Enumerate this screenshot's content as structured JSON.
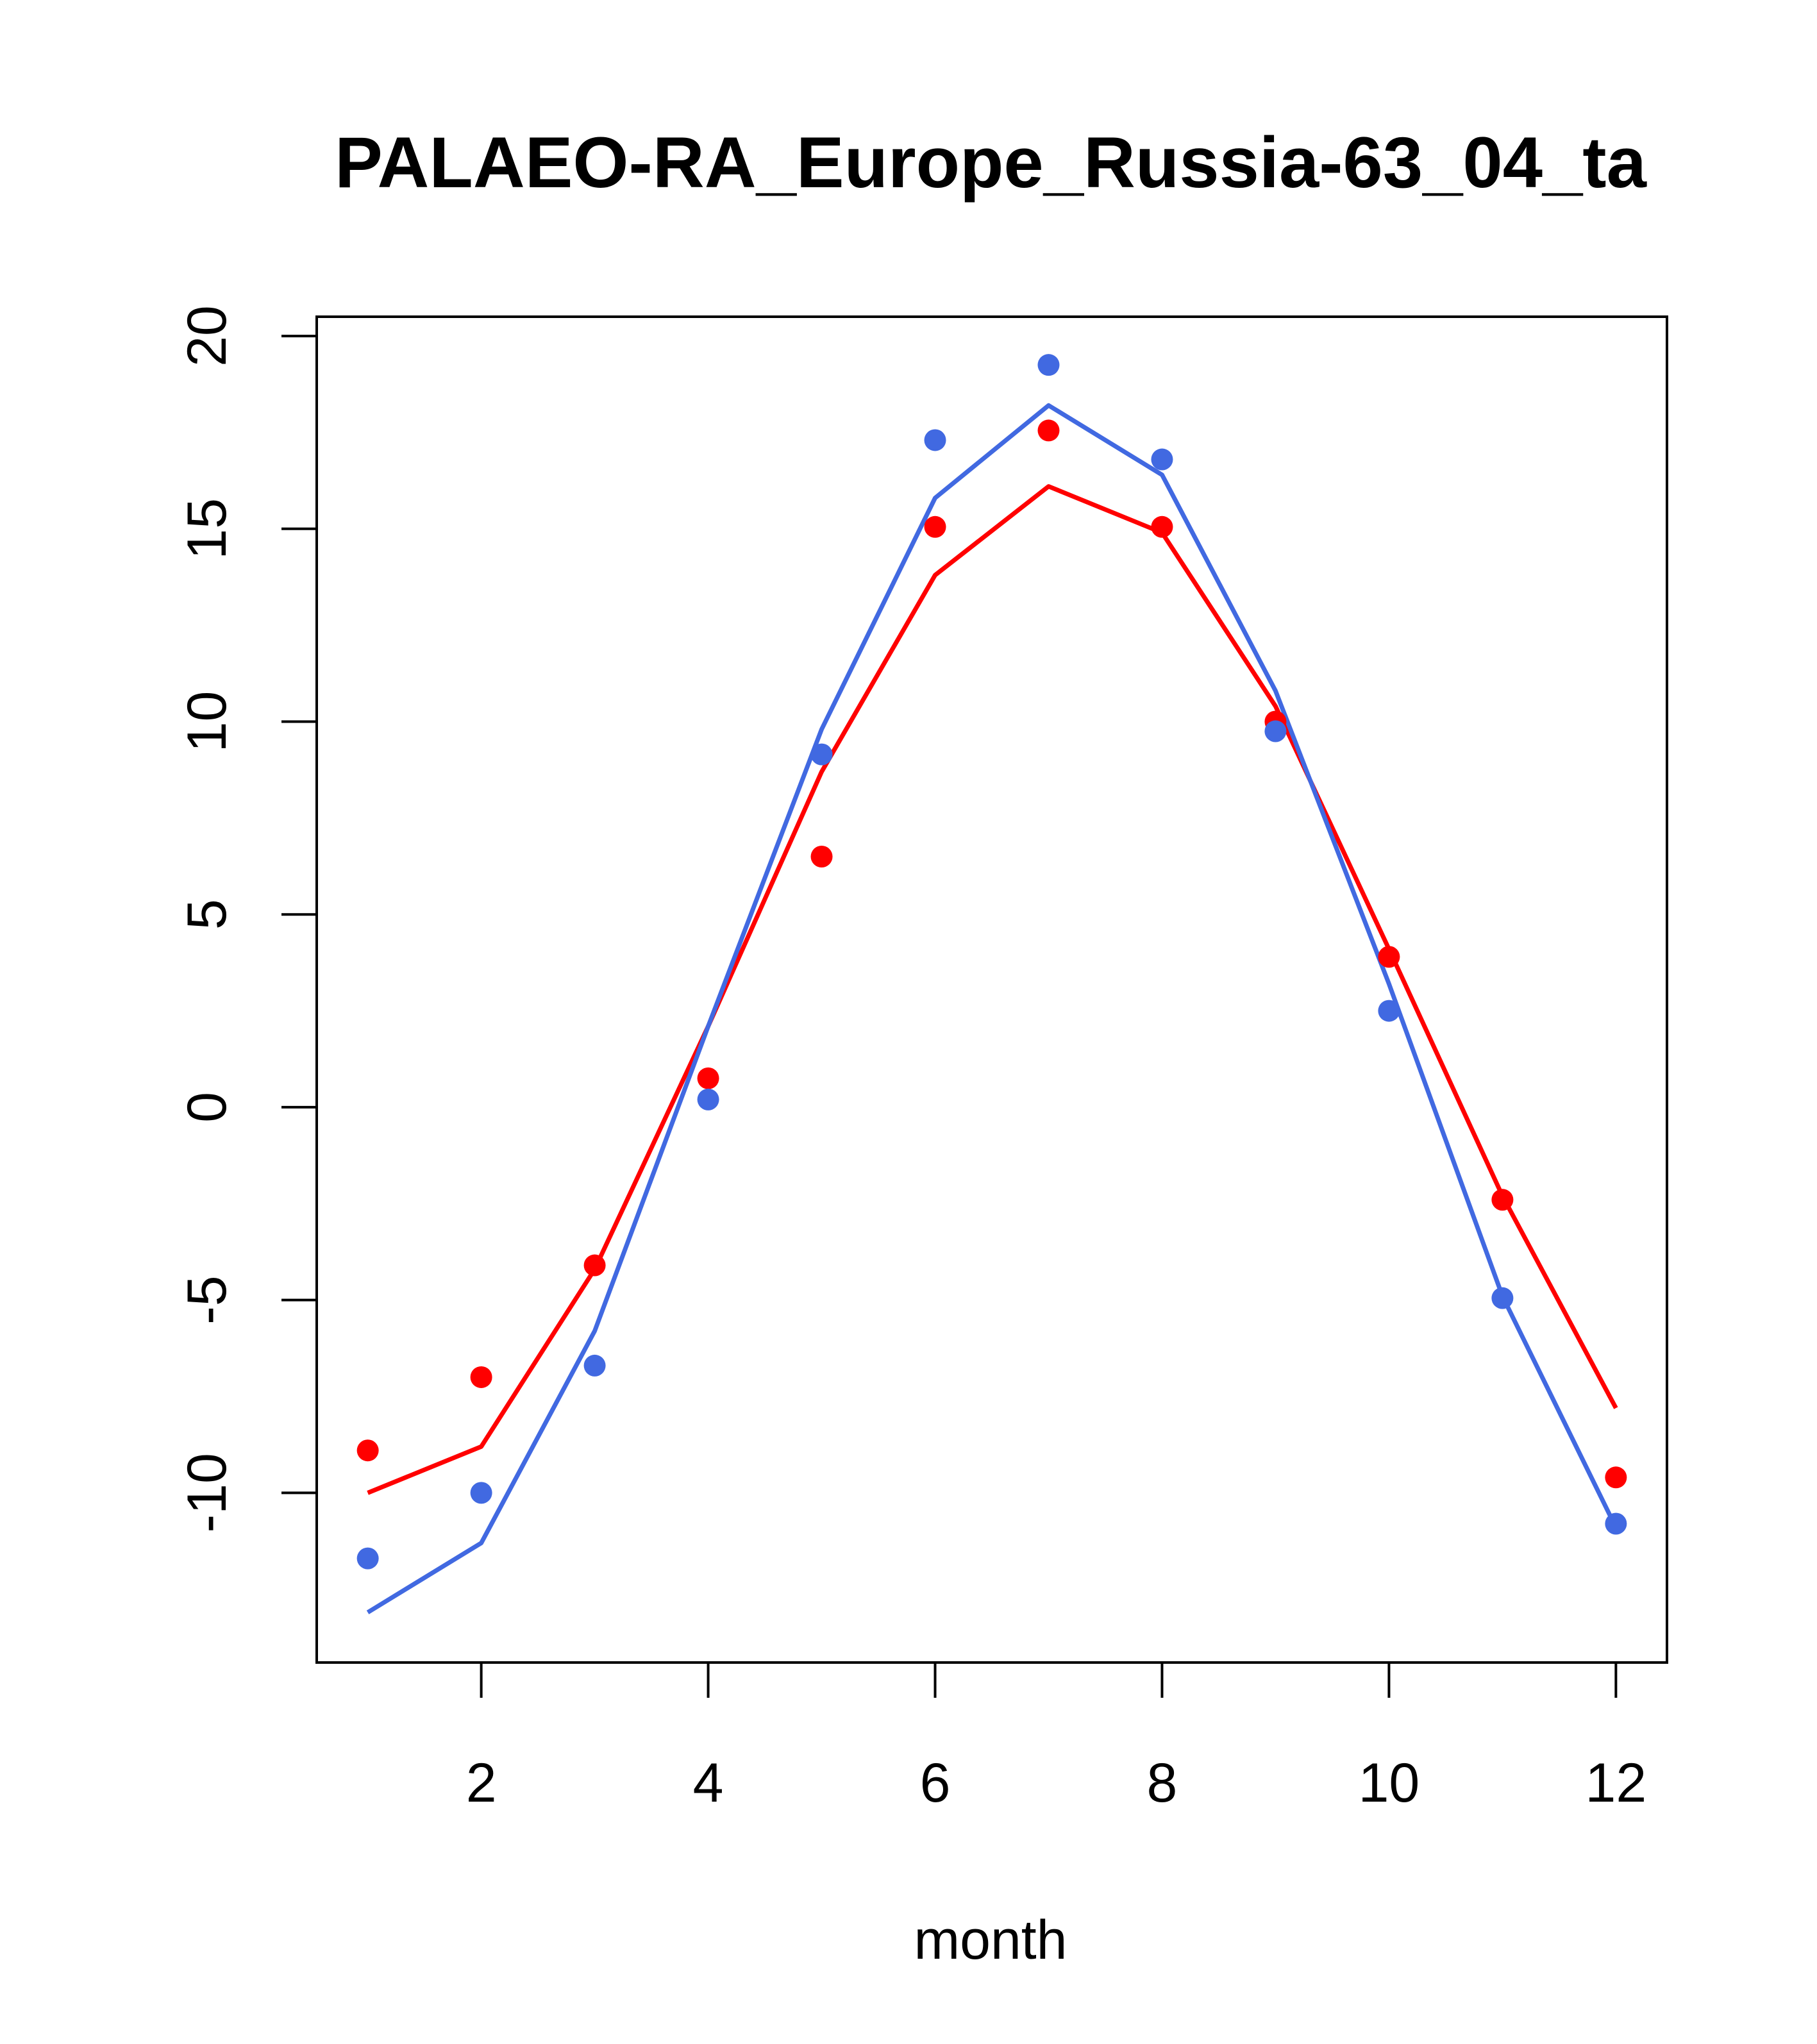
{
  "chart_data": {
    "type": "line",
    "title": "PALAEO-RA_Europe_Russia-63_04_ta",
    "xlabel": "month",
    "ylabel": "",
    "xlim": [
      0.55,
      12.45
    ],
    "ylim": [
      -14.4,
      20.5
    ],
    "x_ticks": [
      2,
      4,
      6,
      8,
      10,
      12
    ],
    "y_ticks": [
      -10,
      -5,
      0,
      5,
      10,
      15,
      20
    ],
    "x": [
      1,
      2,
      3,
      4,
      5,
      6,
      7,
      8,
      9,
      10,
      11,
      12
    ],
    "grid": false,
    "series": [
      {
        "color": "#ff0000",
        "points": [
          -8.9,
          -7.0,
          -4.1,
          0.75,
          6.5,
          15.05,
          17.55,
          15.05,
          10.0,
          3.9,
          -2.4,
          -9.6
        ],
        "line": [
          -10.0,
          -8.8,
          -4.2,
          2.1,
          8.7,
          13.8,
          16.1,
          14.9,
          10.4,
          4.1,
          -2.3,
          -7.8
        ]
      },
      {
        "color": "#4169e1",
        "points": [
          -11.7,
          -10.0,
          -6.7,
          0.2,
          9.15,
          17.3,
          19.25,
          16.8,
          9.75,
          2.5,
          -4.95,
          -10.8
        ],
        "line": [
          -13.1,
          -11.3,
          -5.8,
          2.1,
          9.8,
          15.8,
          18.2,
          16.4,
          10.8,
          3.2,
          -4.9,
          -10.9
        ]
      }
    ]
  }
}
